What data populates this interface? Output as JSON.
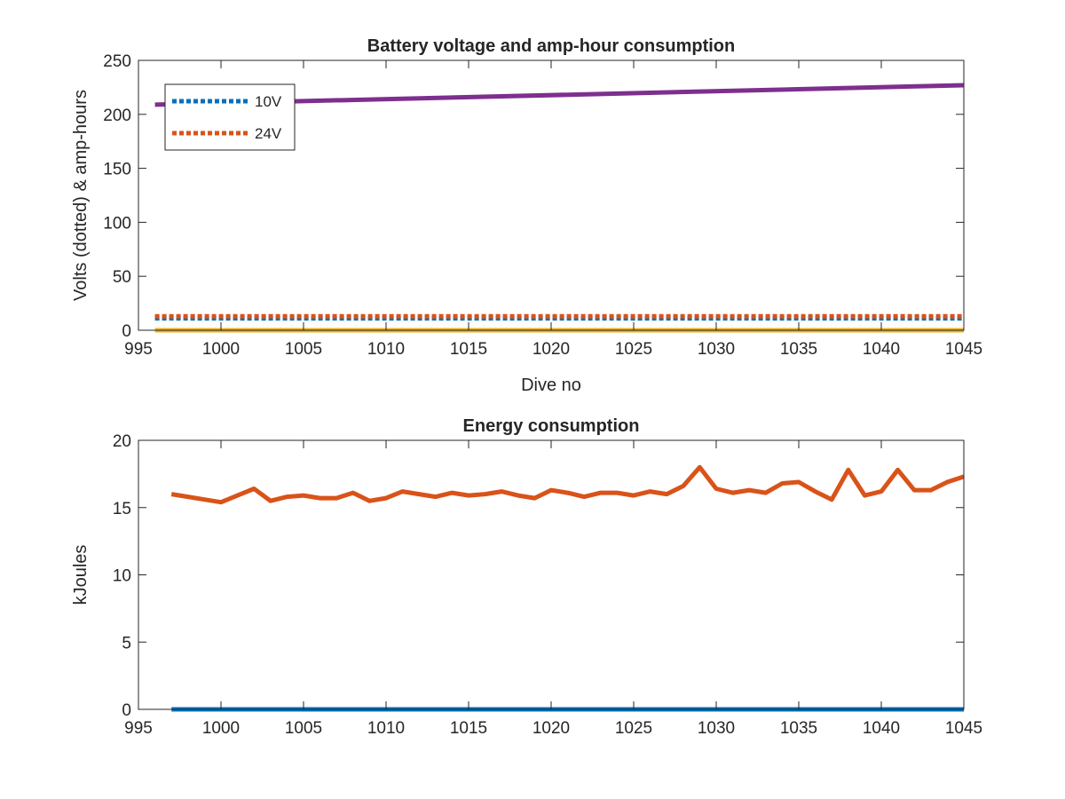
{
  "colors": {
    "blue": "#0072BD",
    "orange": "#D95319",
    "yellow": "#EDB120",
    "purple": "#7E2F8E",
    "axis": "#262626",
    "background": "#ffffff"
  },
  "chart_data": [
    {
      "type": "line",
      "title": "Battery voltage and amp-hour consumption",
      "xlabel": "Dive no",
      "ylabel": "Volts (dotted) & amp-hours",
      "xlim": [
        995,
        1045
      ],
      "ylim": [
        0,
        250
      ],
      "xticks": [
        995,
        1000,
        1005,
        1010,
        1015,
        1020,
        1025,
        1030,
        1035,
        1040,
        1045
      ],
      "yticks": [
        0,
        50,
        100,
        150,
        200,
        250
      ],
      "grid": false,
      "legend_position": "top-left",
      "series": [
        {
          "name": "10V",
          "color": "blue",
          "style": "dotted",
          "x": [
            996,
            1045
          ],
          "y": [
            11,
            11
          ]
        },
        {
          "name": "24V",
          "color": "orange",
          "style": "dotted",
          "x": [
            996,
            1045
          ],
          "y": [
            13,
            13
          ]
        },
        {
          "color": "yellow",
          "style": "solid",
          "x": [
            996,
            1045
          ],
          "y": [
            0,
            0
          ]
        },
        {
          "color": "purple",
          "style": "solid",
          "x": [
            996,
            1045
          ],
          "y": [
            209,
            227
          ]
        }
      ]
    },
    {
      "type": "line",
      "title": "Energy consumption",
      "xlabel": "",
      "ylabel": "kJoules",
      "xlim": [
        995,
        1045
      ],
      "ylim": [
        0,
        20
      ],
      "xticks": [
        995,
        1000,
        1005,
        1010,
        1015,
        1020,
        1025,
        1030,
        1035,
        1040,
        1045
      ],
      "yticks": [
        0,
        5,
        10,
        15,
        20
      ],
      "grid": false,
      "series": [
        {
          "color": "orange",
          "style": "solid",
          "x": [
            997,
            998,
            999,
            1000,
            1001,
            1002,
            1003,
            1004,
            1005,
            1006,
            1007,
            1008,
            1009,
            1010,
            1011,
            1012,
            1013,
            1014,
            1015,
            1016,
            1017,
            1018,
            1019,
            1020,
            1021,
            1022,
            1023,
            1024,
            1025,
            1026,
            1027,
            1028,
            1029,
            1030,
            1031,
            1032,
            1033,
            1034,
            1035,
            1036,
            1037,
            1038,
            1039,
            1040,
            1041,
            1042,
            1043,
            1044,
            1045
          ],
          "y": [
            16.0,
            15.8,
            15.6,
            15.4,
            15.9,
            16.4,
            15.5,
            15.8,
            15.9,
            15.7,
            15.7,
            16.1,
            15.5,
            15.7,
            16.2,
            16.0,
            15.8,
            16.1,
            15.9,
            16.0,
            16.2,
            15.9,
            15.7,
            16.3,
            16.1,
            15.8,
            16.1,
            16.1,
            15.9,
            16.2,
            16.0,
            16.6,
            18.0,
            16.4,
            16.1,
            16.3,
            16.1,
            16.8,
            16.9,
            16.2,
            15.6,
            17.8,
            15.9,
            16.2,
            17.8,
            16.3,
            16.3,
            16.9,
            17.3
          ]
        },
        {
          "color": "blue",
          "style": "solid",
          "x": [
            997,
            1045
          ],
          "y": [
            0,
            0
          ]
        }
      ]
    }
  ]
}
